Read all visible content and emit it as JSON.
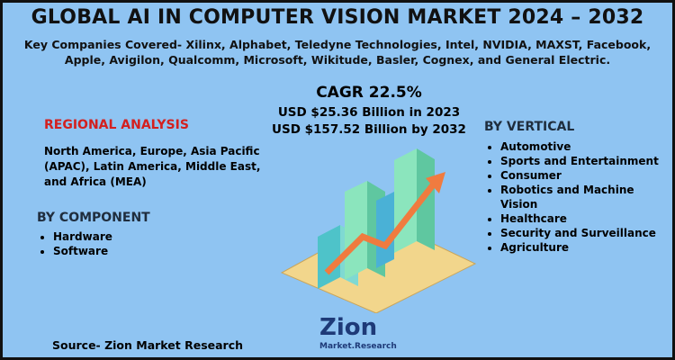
{
  "header": {
    "title": "GLOBAL AI IN COMPUTER VISION MARKET 2024 – 2032",
    "companies": "Key Companies Covered- Xilinx, Alphabet, Teledyne Technologies, Intel, NVIDIA, MAXST, Facebook, Apple, Avigilon, Qualcomm, Microsoft, Wikitude, Basler, Cognex, and General Electric."
  },
  "market": {
    "cagr": "CAGR 22.5%",
    "value_2023": "USD $25.36 Billion in 2023",
    "value_2032": "USD $157.52 Billion by 2032"
  },
  "regional_analysis": {
    "heading": "REGIONAL ANALYSIS",
    "text": "North America, Europe, Asia Pacific (APAC), Latin America, Middle East, and Africa (MEA)"
  },
  "by_component": {
    "heading": "BY COMPONENT",
    "items": [
      "Hardware",
      "Software"
    ]
  },
  "by_vertical": {
    "heading": "BY VERTICAL",
    "items": [
      "Automotive",
      "Sports and Entertainment",
      "Consumer",
      "Robotics and Machine Vision",
      "Healthcare",
      "Security and Surveillance",
      "Agriculture"
    ]
  },
  "source": "Source- Zion Market Research",
  "logo": {
    "name": "Zion",
    "tagline": "Market.Research"
  }
}
